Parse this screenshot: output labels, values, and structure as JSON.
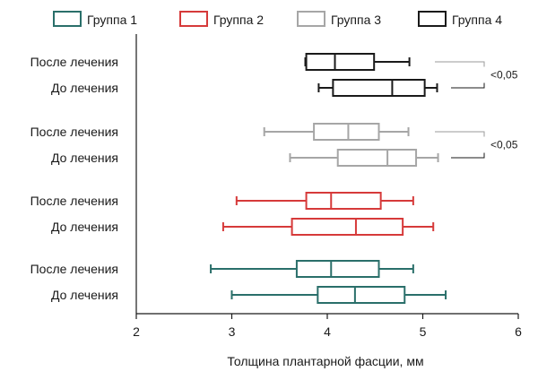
{
  "chart_data": {
    "type": "boxplot",
    "orientation": "horizontal",
    "xlabel": "Толщина плантарной фасции, мм",
    "xlim": [
      2,
      6
    ],
    "xticks": [
      2,
      3,
      4,
      5,
      6
    ],
    "grid": false,
    "legend_position": "top",
    "categories": [
      "После лечения",
      "До лечения"
    ],
    "groups": [
      {
        "name": "Группа 4",
        "color": "#1a1a1a",
        "boxes": [
          {
            "category": "После лечения",
            "min": 3.77,
            "q1": 3.78,
            "median": 4.08,
            "q3": 4.49,
            "max": 4.86
          },
          {
            "category": "До лечения",
            "min": 3.91,
            "q1": 4.06,
            "median": 4.68,
            "q3": 5.02,
            "max": 5.15
          }
        ],
        "comparison": "<0,05"
      },
      {
        "name": "Группа 3",
        "color": "#a6a6a6",
        "boxes": [
          {
            "category": "После лечения",
            "min": 3.34,
            "q1": 3.86,
            "median": 4.22,
            "q3": 4.54,
            "max": 4.85
          },
          {
            "category": "До лечения",
            "min": 3.61,
            "q1": 4.11,
            "median": 4.63,
            "q3": 4.93,
            "max": 5.16
          }
        ],
        "comparison": "<0,05"
      },
      {
        "name": "Группа 2",
        "color": "#d63a3a",
        "boxes": [
          {
            "category": "После лечения",
            "min": 3.05,
            "q1": 3.78,
            "median": 4.04,
            "q3": 4.56,
            "max": 4.9
          },
          {
            "category": "До лечения",
            "min": 2.91,
            "q1": 3.63,
            "median": 4.3,
            "q3": 4.79,
            "max": 5.11
          }
        ]
      },
      {
        "name": "Группа 1",
        "color": "#2a6f6a",
        "boxes": [
          {
            "category": "После лечения",
            "min": 2.78,
            "q1": 3.68,
            "median": 4.04,
            "q3": 4.54,
            "max": 4.9
          },
          {
            "category": "До лечения",
            "min": 3.0,
            "q1": 3.9,
            "median": 4.29,
            "q3": 4.81,
            "max": 5.24
          }
        ]
      }
    ],
    "legend": [
      {
        "name": "Группа 1",
        "color": "#2a6f6a"
      },
      {
        "name": "Группа 2",
        "color": "#d63a3a"
      },
      {
        "name": "Группа 3",
        "color": "#a6a6a6"
      },
      {
        "name": "Группа 4",
        "color": "#1a1a1a"
      }
    ]
  }
}
